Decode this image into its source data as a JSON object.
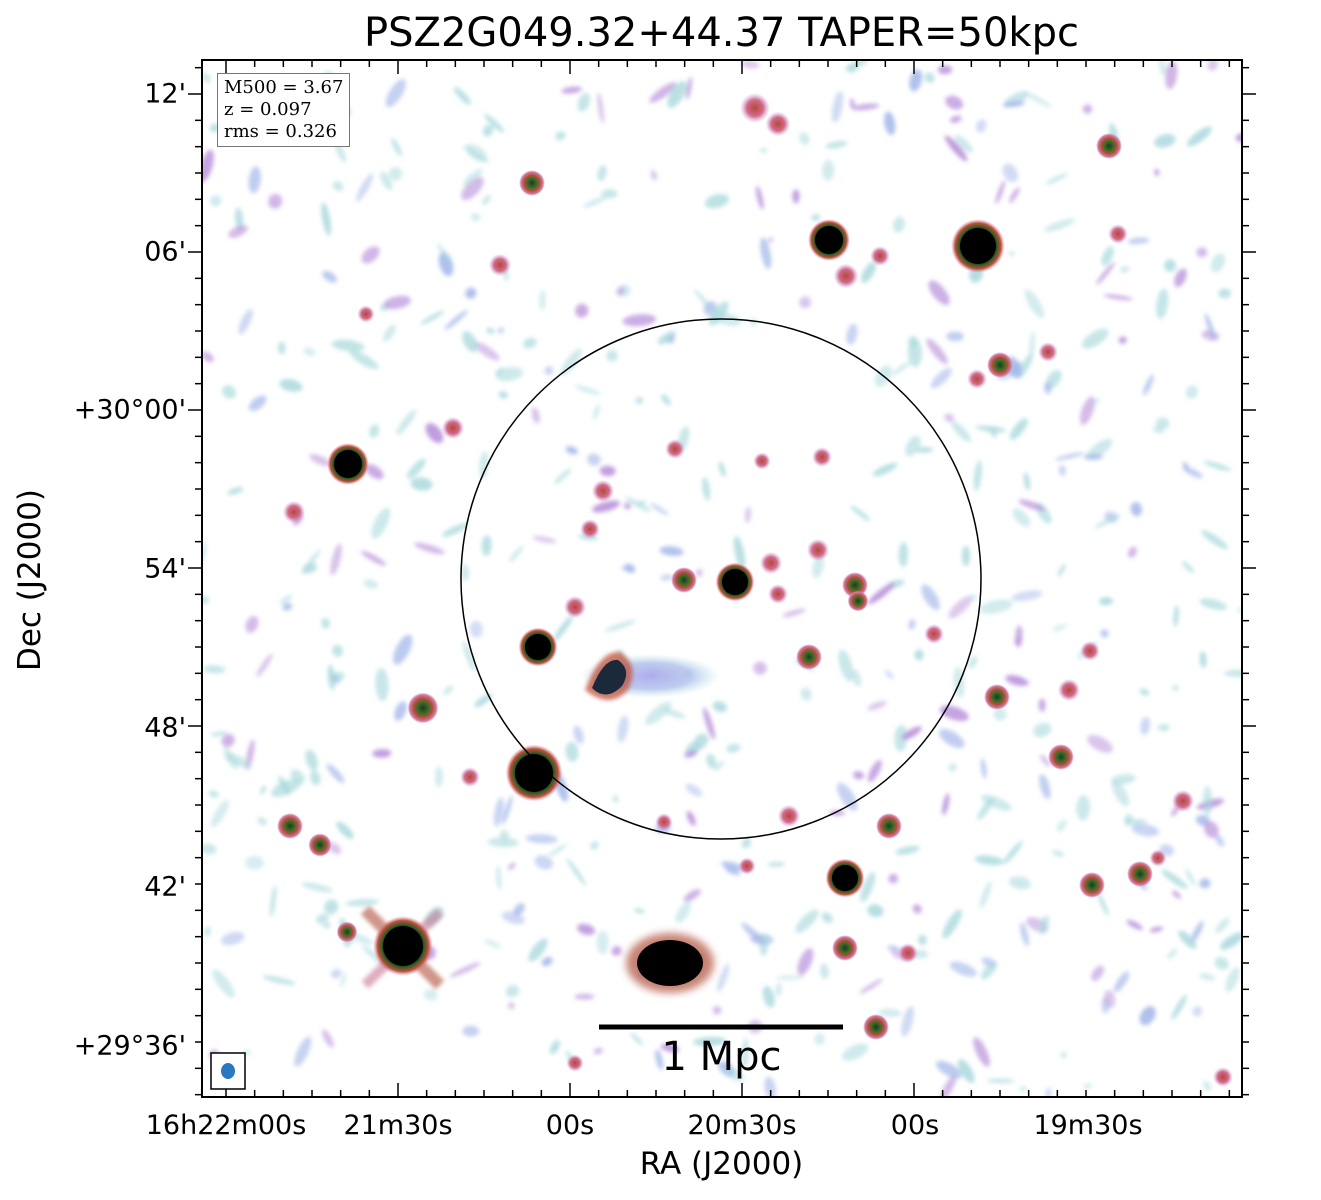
{
  "title": "PSZ2G049.32+44.37 TAPER=50kpc",
  "info": {
    "m500": "M500 = 3.67",
    "z": "z = 0.097",
    "rms": "rms = 0.326"
  },
  "axes": {
    "xlabel": "RA (J2000)",
    "ylabel": "Dec (J2000)",
    "xticks": [
      "16h22m00s",
      "21m30s",
      "00s",
      "20m30s",
      "00s",
      "19m30s"
    ],
    "yticks": [
      "12'",
      "06'",
      "+30°00'",
      "54'",
      "48'",
      "42'",
      "+29°36'"
    ]
  },
  "scalebar": {
    "label": "1 Mpc"
  },
  "colors": {
    "noise_light": "#a8d8dc",
    "noise_mid": "#9fb4e8",
    "purple": "#b48ad8",
    "pink": "#d46a8a",
    "red": "#c0503a",
    "green": "#3a6b2a",
    "black": "#000000",
    "beam": "#2a78c0"
  }
}
